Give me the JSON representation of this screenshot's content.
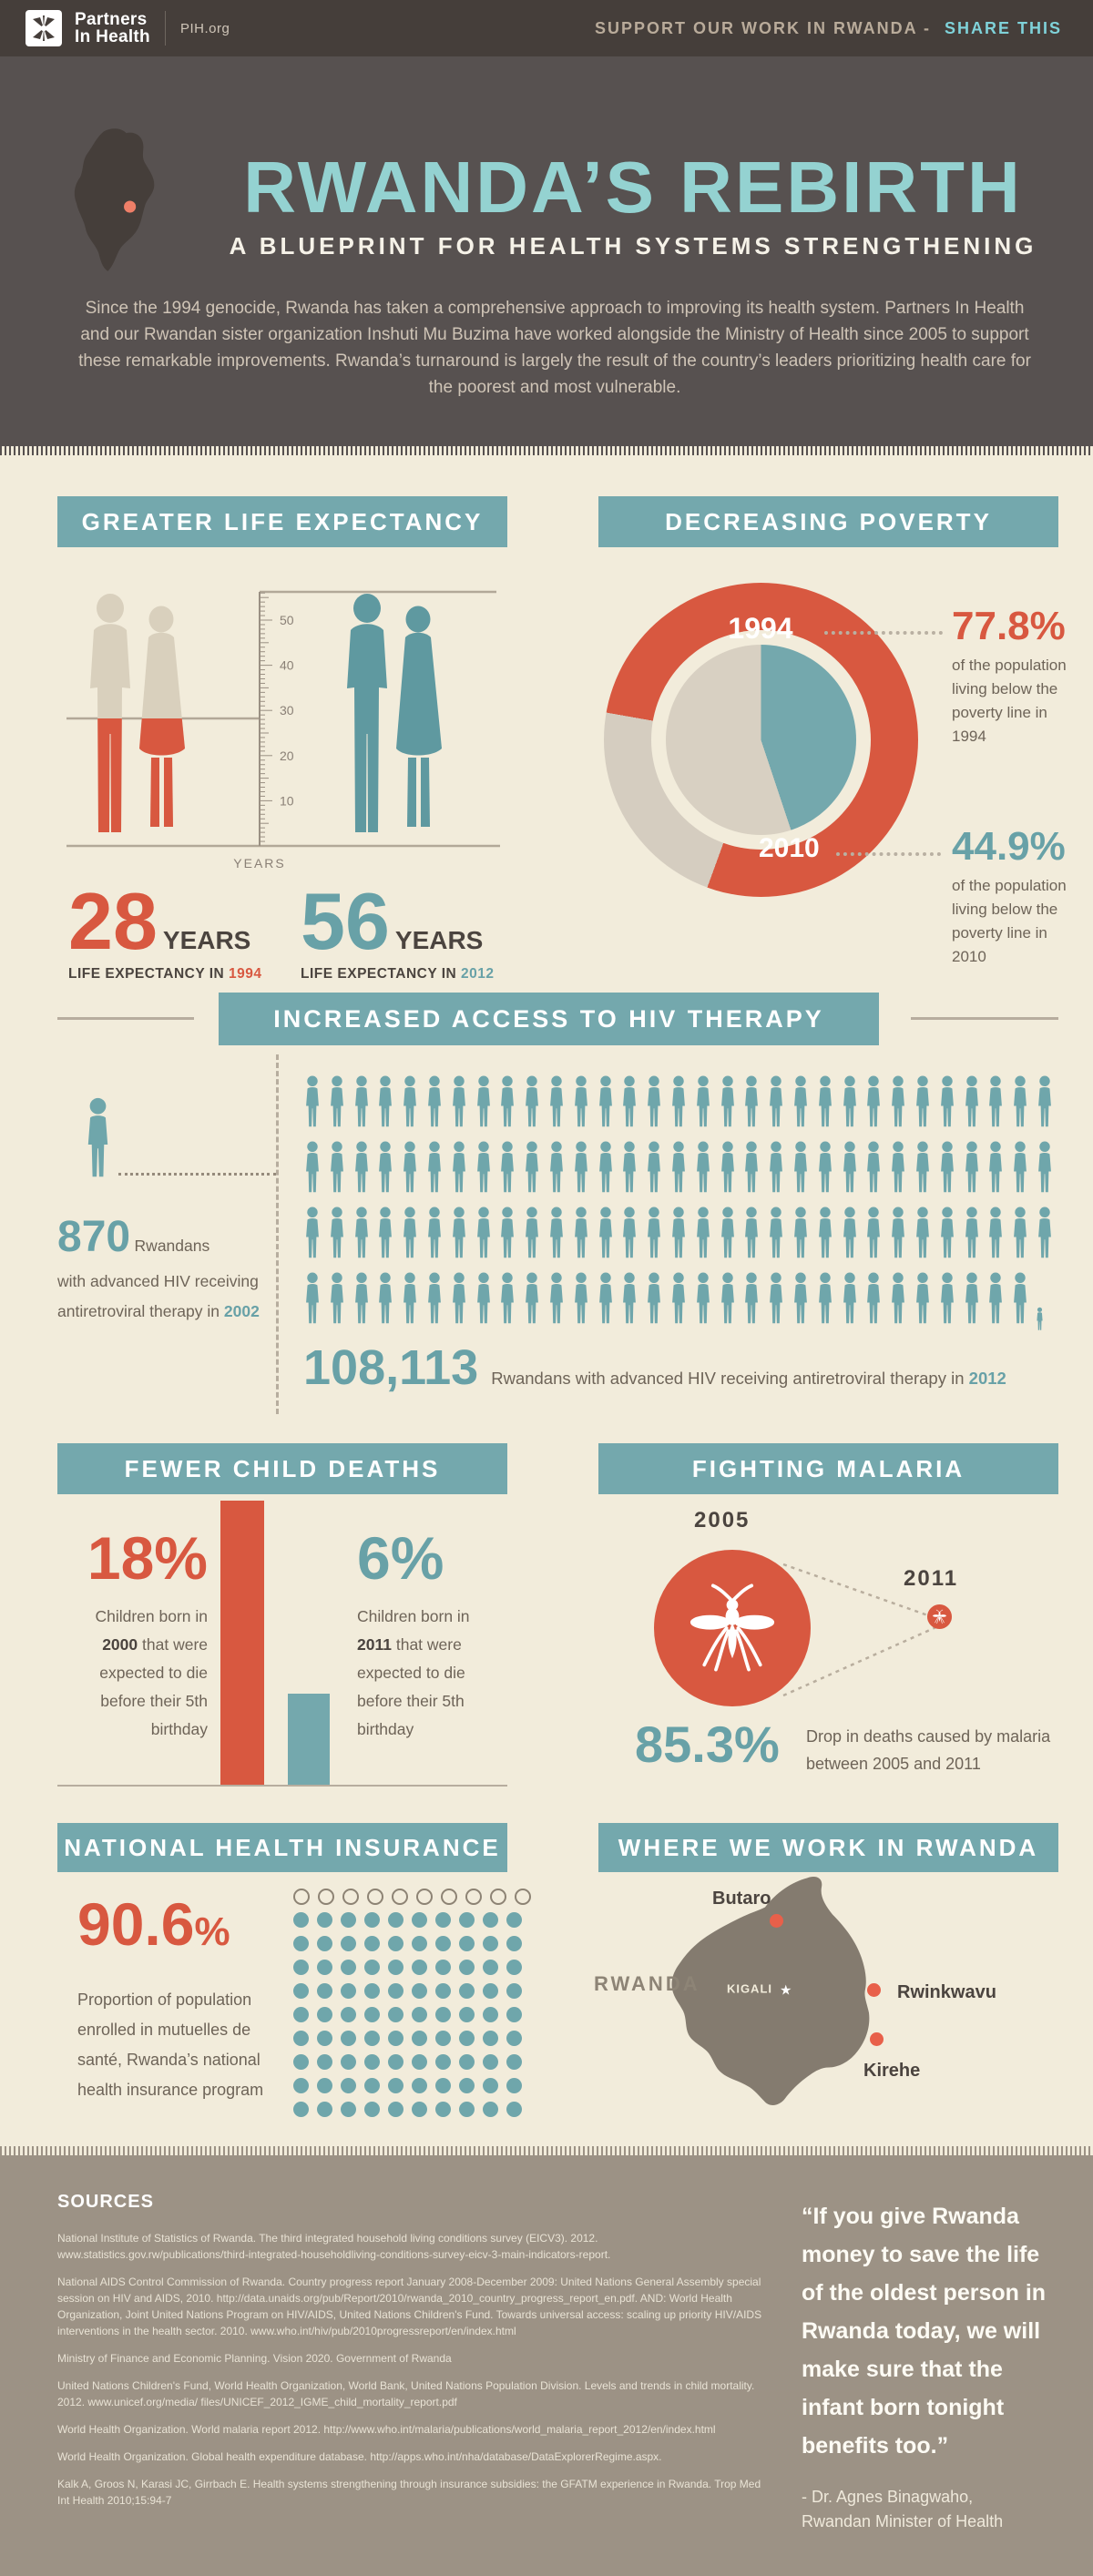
{
  "palette": {
    "header_bg": "#453e3a",
    "hero_bg": "#575150",
    "cream": "#f2ecdb",
    "teal_banner": "#74a8ad",
    "teal_text": "#68a1a7",
    "teal_icon": "#6fa6ab",
    "teal_bright": "#7fd2d9",
    "red": "#d85840",
    "beige_figure": "#d9d0bd",
    "chart_gray": "#d5cdc0",
    "dark_text": "#4b443f",
    "body_text": "#6e6458",
    "footer_bg": "#9c9285",
    "map_gray": "#847b6f",
    "line_gray": "#b7ad9e",
    "hero_title": "#94d2d1",
    "site_dot": "#e8604a"
  },
  "header": {
    "logo_line1": "Partners",
    "logo_line2": "In Health",
    "site": "PIH.org",
    "support_label": "SUPPORT OUR WORK IN RWANDA -",
    "share_label": "SHARE THIS"
  },
  "hero": {
    "title": "RWANDA’S REBIRTH",
    "subtitle": "A BLUEPRINT FOR HEALTH SYSTEMS STRENGTHENING",
    "intro": "Since the 1994 genocide, Rwanda has taken a comprehensive approach to improving its health system. Partners In Health and our Rwandan sister organization Inshuti Mu Buzima have worked alongside the Ministry of Health since 2005 to support these remarkable improvements. Rwanda’s turnaround is largely the result of the country’s leaders prioritizing health care for the poorest and most vulnerable."
  },
  "life_expectancy": {
    "banner": "GREATER LIFE EXPECTANCY",
    "axis_caption": "YEARS",
    "tick_values": [
      50,
      40,
      30,
      20,
      10
    ],
    "stats": [
      {
        "value": "28",
        "unit": "YEARS",
        "caption": "LIFE EXPECTANCY IN",
        "year": "1994"
      },
      {
        "value": "56",
        "unit": "YEARS",
        "caption": "LIFE EXPECTANCY IN",
        "year": "2012"
      }
    ]
  },
  "poverty": {
    "banner": "DECREASING POVERTY",
    "outer_year": "1994",
    "inner_year": "2010",
    "stats": [
      {
        "pct": "77.8%",
        "desc": "of the population living below the poverty line in 1994"
      },
      {
        "pct": "44.9%",
        "desc": "of the population living below the poverty line in 2010"
      }
    ]
  },
  "hiv": {
    "banner": "INCREASED ACCESS TO HIV THERAPY",
    "grid_rows": [
      31,
      31,
      31,
      30
    ],
    "has_partial_icon": true,
    "stat_2002": {
      "value": "870",
      "word": "Rwandans",
      "lines": "with advanced HIV receiving antiretroviral therapy in",
      "year": "2002"
    },
    "stat_2012": {
      "value": "108,113",
      "desc": "Rwandans with advanced HIV receiving antiretroviral therapy in",
      "year": "2012"
    }
  },
  "child_deaths": {
    "banner": "FEWER CHILD DEATHS",
    "stats": [
      {
        "pct": "18%",
        "before": "Children born in",
        "year": "2000",
        "after": "that were expected to die before their 5th birthday"
      },
      {
        "pct": "6%",
        "before": "Children born in",
        "year": "2011",
        "after": "that were expected to die before their 5th birthday"
      }
    ]
  },
  "malaria": {
    "banner": "FIGHTING MALARIA",
    "big_year": "2005",
    "small_year": "2011",
    "pct": "85.3%",
    "desc": "Drop in deaths caused by malaria between 2005 and 2011"
  },
  "insurance": {
    "banner": "NATIONAL HEALTH INSURANCE",
    "pct_value": "90.6",
    "pct_sign": "%",
    "desc": "Proportion of population enrolled in mutuelles de santé, Rwanda’s national health insurance program",
    "grid": {
      "cols": 10,
      "rows": 10,
      "empty_rows": 1
    }
  },
  "map": {
    "banner": "WHERE WE WORK IN RWANDA",
    "country": "RWANDA",
    "capital": "KIGALI",
    "sites": [
      {
        "name": "Butaro"
      },
      {
        "name": "Rwinkwavu"
      },
      {
        "name": "Kirehe"
      }
    ]
  },
  "sources": {
    "heading": "SOURCES",
    "items": [
      "National Institute of Statistics of Rwanda. The third integrated household living conditions survey (EICV3). 2012. www.statistics.gov.rw/publications/third-integrated-householdliving-conditions-survey-eicv-3-main-indicators-report.",
      "National AIDS Control Commission of Rwanda. Country progress report January 2008-December 2009: United Nations General Assembly special session on HIV and AIDS, 2010. http://data.unaids.org/pub/Report/2010/rwanda_2010_country_progress_report_en.pdf. AND: World Health Organization, Joint United Nations Program on HIV/AIDS, United Nations Children's Fund. Towards universal access: scaling up priority HIV/AIDS interventions in the health sector. 2010. www.who.int/hiv/pub/2010progressreport/en/index.html",
      "Ministry of Finance and Economic Planning. Vision 2020. Government of Rwanda",
      "United Nations Children's Fund, World Health Organization, World Bank, United Nations Population Division. Levels and trends in child mortality. 2012. www.unicef.org/media/ files/UNICEF_2012_IGME_child_mortality_report.pdf",
      "World Health Organization. World malaria report 2012. http://www.who.int/malaria/publications/world_malaria_report_2012/en/index.html",
      "World Health Organization. Global health expenditure database. http://apps.who.int/nha/database/DataExplorerRegime.aspx.",
      "Kalk A, Groos N, Karasi JC, Girrbach E. Health systems strengthening through insurance subsidies: the GFATM experience in Rwanda. Trop Med Int Health 2010;15:94-7"
    ]
  },
  "quote": {
    "text": "“If you give Rwanda money to save the life of the oldest person in Rwanda today, we will make sure that the infant born tonight benefits too.”",
    "attr1": "- Dr. Agnes Binagwaho,",
    "attr2": "Rwandan Minister of Health"
  },
  "chart_data": [
    {
      "type": "bar",
      "title": "GREATER LIFE EXPECTANCY",
      "categories": [
        "1994",
        "2012"
      ],
      "values": [
        28,
        56
      ],
      "ylabel": "YEARS",
      "ylim": [
        0,
        56
      ],
      "unit": "years"
    },
    {
      "type": "pie",
      "title": "DECREASING POVERTY",
      "categories": [
        "below poverty line",
        "above poverty line"
      ],
      "series": [
        {
          "name": "1994",
          "values": [
            77.8,
            22.2
          ]
        },
        {
          "name": "2010",
          "values": [
            44.9,
            55.1
          ]
        }
      ],
      "unit": "%"
    },
    {
      "type": "bar",
      "title": "INCREASED ACCESS TO HIV THERAPY",
      "categories": [
        "2002",
        "2012"
      ],
      "values": [
        870,
        108113
      ],
      "unit": "Rwandans with advanced HIV receiving antiretroviral therapy"
    },
    {
      "type": "bar",
      "title": "FEWER CHILD DEATHS",
      "categories": [
        "2000",
        "2011"
      ],
      "values": [
        18,
        6
      ],
      "unit": "% of children expected to die before 5th birthday"
    },
    {
      "type": "bar",
      "title": "FIGHTING MALARIA",
      "categories": [
        "2005",
        "2011"
      ],
      "values": [
        100,
        14.7
      ],
      "unit": "relative malaria deaths",
      "note": "85.3% drop between 2005 and 2011"
    },
    {
      "type": "bar",
      "title": "NATIONAL HEALTH INSURANCE",
      "categories": [
        "enrolled in mutuelles de santé"
      ],
      "values": [
        90.6
      ],
      "unit": "% of population"
    }
  ]
}
